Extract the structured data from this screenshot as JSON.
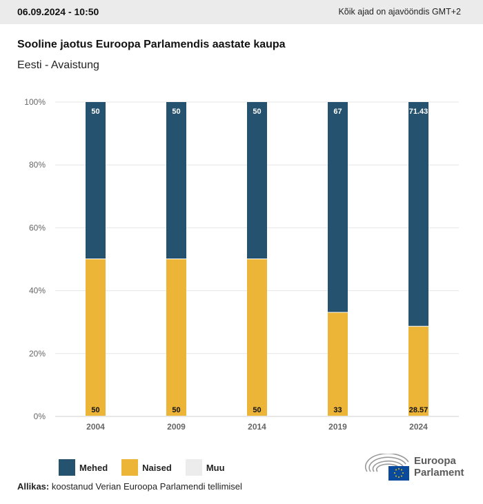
{
  "header": {
    "datetime": "06.09.2024 - 10:50",
    "timezone_note": "Kõik ajad on ajavööndis GMT+2"
  },
  "title": "Sooline jaotus Euroopa Parlamendis aastate kaupa",
  "subtitle": "Eesti - Avaistung",
  "legend": [
    {
      "label": "Mehed",
      "color": "#24526f"
    },
    {
      "label": "Naised",
      "color": "#ecb538"
    },
    {
      "label": "Muu",
      "color": "#ececec"
    }
  ],
  "source": {
    "label": "Allikas:",
    "text": " koostanud Verian Euroopa Parlamendi tellimisel"
  },
  "logo": {
    "line1": "Euroopa",
    "line2": "Parlament"
  },
  "chart_data": {
    "type": "bar",
    "stacked": true,
    "title": "Sooline jaotus Euroopa Parlamendis aastate kaupa",
    "subtitle": "Eesti - Avaistung",
    "categories": [
      "2004",
      "2009",
      "2014",
      "2019",
      "2024"
    ],
    "series": [
      {
        "name": "Naised",
        "color": "#ecb538",
        "values": [
          50,
          50,
          50,
          33,
          28.57
        ],
        "labels": [
          "50",
          "50",
          "50",
          "33",
          "28.57"
        ]
      },
      {
        "name": "Mehed",
        "color": "#24526f",
        "values": [
          50,
          50,
          50,
          67,
          71.43
        ],
        "labels": [
          "50",
          "50",
          "50",
          "67",
          "71.43"
        ]
      },
      {
        "name": "Muu",
        "color": "#ececec",
        "values": [
          0,
          0,
          0,
          0,
          0
        ]
      }
    ],
    "yticks": [
      "0%",
      "20%",
      "40%",
      "60%",
      "80%",
      "100%"
    ],
    "ylim": [
      0,
      100
    ],
    "xlabel": "",
    "ylabel": "",
    "grid": true,
    "legend_position": "bottom-left"
  }
}
